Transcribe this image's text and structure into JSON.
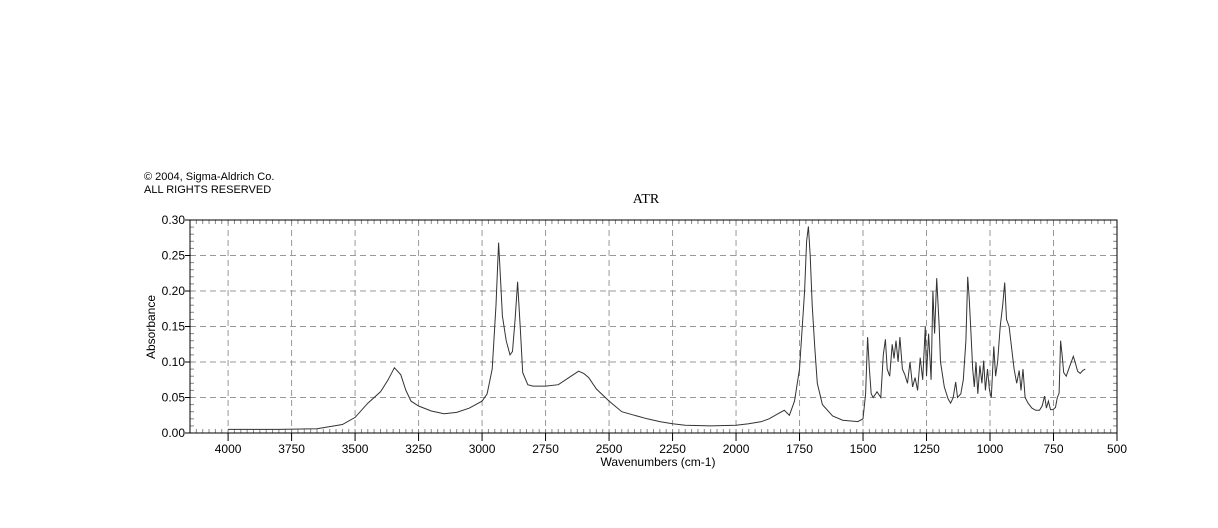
{
  "copyright": {
    "line1": "© 2004, Sigma-Aldrich Co.",
    "line2": "ALL RIGHTS RESERVED"
  },
  "chart_data": {
    "type": "line",
    "title": "ATR",
    "xlabel": "Wavenumbers (cm-1)",
    "ylabel": "Absorbance",
    "xlim": [
      4150,
      500
    ],
    "ylim": [
      0,
      0.3
    ],
    "x_reversed": true,
    "grid": true,
    "x_ticks": [
      4000,
      3750,
      3500,
      3250,
      3000,
      2750,
      2500,
      2250,
      2000,
      1750,
      1500,
      1250,
      1000,
      750,
      500
    ],
    "y_ticks": [
      "0.00",
      "0.05",
      "0.10",
      "0.15",
      "0.20",
      "0.25",
      "0.30"
    ],
    "line_color": "#333333",
    "series": [
      {
        "points": [
          [
            4000,
            0.005
          ],
          [
            3800,
            0.005
          ],
          [
            3650,
            0.006
          ],
          [
            3550,
            0.012
          ],
          [
            3500,
            0.022
          ],
          [
            3450,
            0.042
          ],
          [
            3400,
            0.058
          ],
          [
            3370,
            0.075
          ],
          [
            3345,
            0.092
          ],
          [
            3320,
            0.082
          ],
          [
            3300,
            0.06
          ],
          [
            3280,
            0.045
          ],
          [
            3250,
            0.038
          ],
          [
            3200,
            0.031
          ],
          [
            3150,
            0.027
          ],
          [
            3100,
            0.029
          ],
          [
            3050,
            0.035
          ],
          [
            3000,
            0.045
          ],
          [
            2980,
            0.055
          ],
          [
            2960,
            0.09
          ],
          [
            2945,
            0.18
          ],
          [
            2935,
            0.268
          ],
          [
            2928,
            0.22
          ],
          [
            2920,
            0.165
          ],
          [
            2905,
            0.13
          ],
          [
            2890,
            0.11
          ],
          [
            2880,
            0.115
          ],
          [
            2870,
            0.16
          ],
          [
            2860,
            0.213
          ],
          [
            2850,
            0.15
          ],
          [
            2840,
            0.085
          ],
          [
            2820,
            0.068
          ],
          [
            2800,
            0.066
          ],
          [
            2750,
            0.066
          ],
          [
            2700,
            0.068
          ],
          [
            2650,
            0.08
          ],
          [
            2620,
            0.087
          ],
          [
            2600,
            0.084
          ],
          [
            2580,
            0.078
          ],
          [
            2550,
            0.062
          ],
          [
            2500,
            0.045
          ],
          [
            2450,
            0.03
          ],
          [
            2400,
            0.025
          ],
          [
            2350,
            0.02
          ],
          [
            2300,
            0.016
          ],
          [
            2250,
            0.013
          ],
          [
            2200,
            0.011
          ],
          [
            2100,
            0.01
          ],
          [
            2000,
            0.011
          ],
          [
            1950,
            0.013
          ],
          [
            1900,
            0.016
          ],
          [
            1870,
            0.02
          ],
          [
            1830,
            0.028
          ],
          [
            1810,
            0.032
          ],
          [
            1790,
            0.025
          ],
          [
            1770,
            0.045
          ],
          [
            1750,
            0.09
          ],
          [
            1730,
            0.2
          ],
          [
            1722,
            0.27
          ],
          [
            1715,
            0.291
          ],
          [
            1708,
            0.25
          ],
          [
            1700,
            0.18
          ],
          [
            1690,
            0.12
          ],
          [
            1680,
            0.07
          ],
          [
            1660,
            0.04
          ],
          [
            1620,
            0.024
          ],
          [
            1580,
            0.018
          ],
          [
            1520,
            0.016
          ],
          [
            1500,
            0.02
          ],
          [
            1490,
            0.055
          ],
          [
            1482,
            0.135
          ],
          [
            1475,
            0.09
          ],
          [
            1468,
            0.055
          ],
          [
            1460,
            0.05
          ],
          [
            1445,
            0.058
          ],
          [
            1430,
            0.05
          ],
          [
            1420,
            0.11
          ],
          [
            1412,
            0.132
          ],
          [
            1405,
            0.09
          ],
          [
            1395,
            0.08
          ],
          [
            1385,
            0.125
          ],
          [
            1378,
            0.105
          ],
          [
            1370,
            0.13
          ],
          [
            1362,
            0.1
          ],
          [
            1355,
            0.135
          ],
          [
            1345,
            0.09
          ],
          [
            1335,
            0.082
          ],
          [
            1325,
            0.07
          ],
          [
            1315,
            0.1
          ],
          [
            1305,
            0.065
          ],
          [
            1295,
            0.078
          ],
          [
            1285,
            0.06
          ],
          [
            1275,
            0.106
          ],
          [
            1265,
            0.075
          ],
          [
            1255,
            0.15
          ],
          [
            1250,
            0.08
          ],
          [
            1242,
            0.14
          ],
          [
            1232,
            0.075
          ],
          [
            1225,
            0.2
          ],
          [
            1218,
            0.14
          ],
          [
            1210,
            0.218
          ],
          [
            1200,
            0.15
          ],
          [
            1195,
            0.1
          ],
          [
            1180,
            0.065
          ],
          [
            1165,
            0.048
          ],
          [
            1155,
            0.042
          ],
          [
            1145,
            0.05
          ],
          [
            1135,
            0.072
          ],
          [
            1128,
            0.05
          ],
          [
            1115,
            0.055
          ],
          [
            1105,
            0.075
          ],
          [
            1095,
            0.13
          ],
          [
            1088,
            0.22
          ],
          [
            1082,
            0.19
          ],
          [
            1075,
            0.14
          ],
          [
            1068,
            0.09
          ],
          [
            1062,
            0.065
          ],
          [
            1055,
            0.1
          ],
          [
            1048,
            0.055
          ],
          [
            1040,
            0.095
          ],
          [
            1032,
            0.07
          ],
          [
            1025,
            0.102
          ],
          [
            1018,
            0.06
          ],
          [
            1010,
            0.09
          ],
          [
            1002,
            0.06
          ],
          [
            995,
            0.05
          ],
          [
            985,
            0.122
          ],
          [
            978,
            0.08
          ],
          [
            970,
            0.1
          ],
          [
            960,
            0.15
          ],
          [
            950,
            0.18
          ],
          [
            942,
            0.212
          ],
          [
            935,
            0.16
          ],
          [
            925,
            0.15
          ],
          [
            915,
            0.12
          ],
          [
            905,
            0.09
          ],
          [
            895,
            0.07
          ],
          [
            885,
            0.088
          ],
          [
            878,
            0.06
          ],
          [
            870,
            0.09
          ],
          [
            862,
            0.05
          ],
          [
            850,
            0.042
          ],
          [
            835,
            0.035
          ],
          [
            820,
            0.032
          ],
          [
            805,
            0.032
          ],
          [
            795,
            0.038
          ],
          [
            785,
            0.052
          ],
          [
            778,
            0.035
          ],
          [
            770,
            0.045
          ],
          [
            762,
            0.033
          ],
          [
            752,
            0.033
          ],
          [
            742,
            0.036
          ],
          [
            735,
            0.05
          ],
          [
            728,
            0.056
          ],
          [
            722,
            0.13
          ],
          [
            716,
            0.11
          ],
          [
            710,
            0.085
          ],
          [
            700,
            0.08
          ],
          [
            690,
            0.09
          ],
          [
            680,
            0.1
          ],
          [
            672,
            0.108
          ],
          [
            665,
            0.1
          ],
          [
            655,
            0.087
          ],
          [
            645,
            0.084
          ],
          [
            635,
            0.088
          ],
          [
            625,
            0.09
          ]
        ]
      }
    ]
  }
}
